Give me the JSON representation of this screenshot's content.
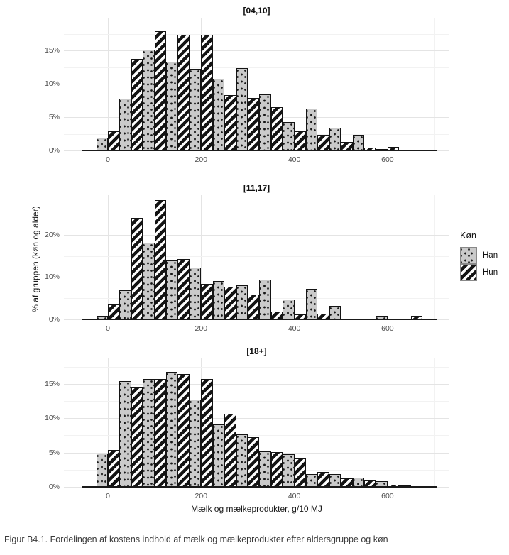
{
  "figure": {
    "caption": "Figur B4.1. Fordelingen af kostens indhold af mælk og mælkeprodukter efter aldersgruppe og køn"
  },
  "chart_data": {
    "type": "bar",
    "subtype": "dodged-histogram-with-facets",
    "title": "",
    "xlabel": "Mælk og mælkeprodukter, g/10 MJ",
    "ylabel": "% af gruppen (køn og alder)",
    "grid": "on",
    "legend": {
      "title": "Køn",
      "position": "right",
      "entries": [
        {
          "label": "Han",
          "pattern": "dots",
          "fill": "#cacaca",
          "stroke": "#141414"
        },
        {
          "label": "Hun",
          "pattern": "diagonal-stripes",
          "fill": "#ffffff",
          "stroke": "#141414"
        }
      ]
    },
    "x_axis": {
      "ticks": [
        0,
        200,
        400,
        600
      ],
      "minor_ticks": [
        100,
        300,
        500,
        700
      ],
      "range": [
        -97,
        733
      ],
      "bin_width": 50
    },
    "bin_centers": [
      0,
      50,
      100,
      150,
      200,
      250,
      300,
      350,
      400,
      450,
      500,
      550,
      600,
      650
    ],
    "facets": [
      {
        "title": "[04,10]",
        "y_ticks": [
          0,
          5,
          10,
          15
        ],
        "y_minor": [
          2.5,
          7.5,
          12.5,
          17.5
        ],
        "y_max": 20,
        "series": [
          {
            "name": "Han",
            "values": [
              2.0,
              7.9,
              15.2,
              13.4,
              12.3,
              10.9,
              12.4,
              8.5,
              4.4,
              6.4,
              3.5,
              2.5,
              0.35,
              0
            ]
          },
          {
            "name": "Hun",
            "values": [
              3.0,
              13.8,
              18.0,
              17.4,
              17.4,
              8.4,
              8.0,
              6.6,
              3.0,
              2.5,
              1.4,
              0.5,
              0.6,
              0
            ]
          }
        ]
      },
      {
        "title": "[11,17]",
        "y_ticks": [
          0,
          10,
          20
        ],
        "y_minor": [
          5,
          15,
          25
        ],
        "y_max": 29.5,
        "series": [
          {
            "name": "Han",
            "values": [
              1.0,
              7.0,
              18.2,
              14.0,
              12.4,
              9.2,
              8.2,
              9.5,
              4.8,
              7.3,
              3.3,
              0.3,
              1.0,
              0.2
            ]
          },
          {
            "name": "Hun",
            "values": [
              3.7,
              24.2,
              28.4,
              14.4,
              8.5,
              7.9,
              6.1,
              2.0,
              1.4,
              1.5,
              0.4,
              0.3,
              0.3,
              1.0
            ]
          }
        ]
      },
      {
        "title": "[18+]",
        "y_ticks": [
          0,
          5,
          10,
          15
        ],
        "y_minor": [
          2.5,
          7.5,
          12.5,
          17.5
        ],
        "y_max": 18.8,
        "series": [
          {
            "name": "Han",
            "values": [
              5.0,
              15.5,
              15.8,
              16.8,
              12.8,
              9.2,
              7.8,
              5.3,
              4.9,
              2.0,
              2.0,
              1.4,
              0.9,
              0.3
            ]
          },
          {
            "name": "Hun",
            "values": [
              5.5,
              14.7,
              15.8,
              16.5,
              15.8,
              10.7,
              7.3,
              5.2,
              4.2,
              2.3,
              1.3,
              1.0,
              0.4,
              0.2
            ]
          }
        ]
      }
    ]
  },
  "colors": {
    "grid_major": "#e4e4e4",
    "grid_minor": "#f2f2f2",
    "baseline": "#1a1a1a",
    "tick_text": "#4d4d4d",
    "background": "#ffffff"
  }
}
